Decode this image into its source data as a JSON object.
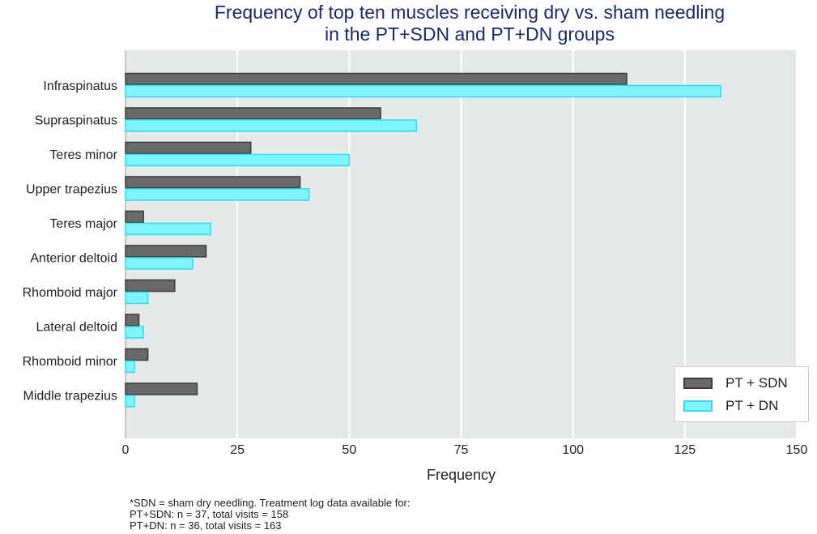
{
  "chart_data": {
    "type": "bar",
    "orientation": "horizontal",
    "title_lines": [
      "Frequency of top ten muscles receiving dry vs. sham needling",
      "in the PT+SDN and PT+DN groups"
    ],
    "categories": [
      "Infraspinatus",
      "Supraspinatus",
      "Teres minor",
      "Upper trapezius",
      "Teres major",
      "Anterior deltoid",
      "Rhomboid major",
      "Lateral deltoid",
      "Rhomboid minor",
      "Middle trapezius"
    ],
    "series": [
      {
        "name": "PT + SDN",
        "values": [
          112,
          57,
          28,
          39,
          4,
          18,
          11,
          3,
          5,
          16
        ],
        "fill": "#696969",
        "stroke": "#3c3c3c"
      },
      {
        "name": "PT + DN",
        "values": [
          133,
          65,
          50,
          41,
          19,
          15,
          5,
          4,
          2,
          2
        ],
        "fill": "#7ef5ff",
        "stroke": "#34dcec"
      }
    ],
    "xlabel": "Frequency",
    "ylabel": "",
    "xlim": [
      0,
      150
    ],
    "xticks": [
      0,
      25,
      50,
      75,
      100,
      125,
      150
    ],
    "grid": "vertical",
    "legend_position": "bottom-right"
  },
  "colors": {
    "plot_background": "#e6e9e9",
    "grid": "#ffffff",
    "title": "#1a2a6c"
  },
  "footnote": [
    "*SDN = sham dry needling. Treatment log data available for:",
    "PT+SDN: n = 37, total visits = 158",
    "PT+DN: n = 36, total visits = 163"
  ]
}
